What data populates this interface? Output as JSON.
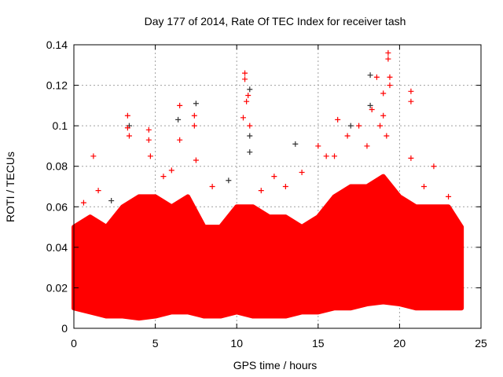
{
  "chart_data": {
    "type": "scatter",
    "title": "Day 177 of 2014, Rate Of TEC Index for receiver tash",
    "xlabel": "GPS time / hours",
    "ylabel": "ROTI / TECUs",
    "xlim": [
      0,
      25
    ],
    "ylim": [
      0,
      0.14
    ],
    "xticks": [
      "0",
      "5",
      "10",
      "15",
      "20",
      "25"
    ],
    "xtick_values": [
      0,
      5,
      10,
      15,
      20,
      25
    ],
    "yticks": [
      "0",
      "0.02",
      "0.04",
      "0.06",
      "0.08",
      "0.1",
      "0.12",
      "0.14"
    ],
    "ytick_values": [
      0,
      0.02,
      0.04,
      0.06,
      0.08,
      0.1,
      0.12,
      0.14
    ],
    "grid": true,
    "marker": "+",
    "colors": {
      "primary": "#ff0000",
      "secondary": "#333333",
      "grid": "#a0a0a0"
    },
    "dense_band": {
      "x": [
        0,
        1,
        2,
        3,
        4,
        5,
        6,
        7,
        8,
        9,
        10,
        11,
        12,
        13,
        14,
        15,
        16,
        17,
        18,
        19,
        20,
        21,
        22,
        23,
        23.8
      ],
      "upper": [
        0.05,
        0.055,
        0.05,
        0.06,
        0.065,
        0.065,
        0.06,
        0.065,
        0.05,
        0.05,
        0.06,
        0.06,
        0.055,
        0.055,
        0.05,
        0.055,
        0.065,
        0.07,
        0.07,
        0.075,
        0.065,
        0.06,
        0.06,
        0.06,
        0.05
      ],
      "lower": [
        0.01,
        0.008,
        0.006,
        0.006,
        0.005,
        0.006,
        0.008,
        0.008,
        0.006,
        0.006,
        0.008,
        0.006,
        0.006,
        0.006,
        0.008,
        0.008,
        0.01,
        0.01,
        0.012,
        0.013,
        0.012,
        0.01,
        0.01,
        0.01,
        0.01
      ]
    },
    "series": [
      {
        "name": "secondary",
        "color": "#333333",
        "points": [
          [
            7.5,
            0.111
          ],
          [
            6.4,
            0.103
          ],
          [
            10.8,
            0.118
          ],
          [
            10.8,
            0.095
          ],
          [
            10.8,
            0.087
          ],
          [
            13.6,
            0.091
          ],
          [
            18.2,
            0.125
          ],
          [
            18.2,
            0.11
          ],
          [
            17,
            0.1
          ],
          [
            3.4,
            0.1
          ],
          [
            9.5,
            0.073
          ],
          [
            2.3,
            0.063
          ]
        ]
      },
      {
        "name": "primary",
        "color": "#ff0000",
        "points": [
          [
            3.3,
            0.105
          ],
          [
            3.3,
            0.099
          ],
          [
            3.4,
            0.095
          ],
          [
            4.6,
            0.098
          ],
          [
            4.6,
            0.093
          ],
          [
            4.7,
            0.085
          ],
          [
            1.2,
            0.085
          ],
          [
            6.5,
            0.11
          ],
          [
            6.5,
            0.093
          ],
          [
            7.4,
            0.105
          ],
          [
            7.4,
            0.1
          ],
          [
            7.5,
            0.083
          ],
          [
            10.5,
            0.126
          ],
          [
            10.5,
            0.123
          ],
          [
            10.7,
            0.115
          ],
          [
            10.6,
            0.112
          ],
          [
            10.4,
            0.104
          ],
          [
            10.8,
            0.1
          ],
          [
            12.3,
            0.075
          ],
          [
            15,
            0.09
          ],
          [
            15.5,
            0.085
          ],
          [
            16.2,
            0.103
          ],
          [
            16.8,
            0.095
          ],
          [
            17.5,
            0.1
          ],
          [
            18,
            0.09
          ],
          [
            18.3,
            0.108
          ],
          [
            18.6,
            0.124
          ],
          [
            19.0,
            0.116
          ],
          [
            19.3,
            0.136
          ],
          [
            19.3,
            0.133
          ],
          [
            19.4,
            0.124
          ],
          [
            19.4,
            0.12
          ],
          [
            19.0,
            0.105
          ],
          [
            19.2,
            0.095
          ],
          [
            20.7,
            0.117
          ],
          [
            20.7,
            0.112
          ],
          [
            20.7,
            0.084
          ],
          [
            22.1,
            0.08
          ],
          [
            0.6,
            0.062
          ],
          [
            8.5,
            0.07
          ],
          [
            13.0,
            0.07
          ],
          [
            14.0,
            0.077
          ],
          [
            1.5,
            0.068
          ],
          [
            5.5,
            0.075
          ],
          [
            6.0,
            0.078
          ],
          [
            11.5,
            0.068
          ],
          [
            16.0,
            0.085
          ],
          [
            18.8,
            0.1
          ],
          [
            21.5,
            0.07
          ],
          [
            23.0,
            0.065
          ]
        ]
      }
    ]
  }
}
